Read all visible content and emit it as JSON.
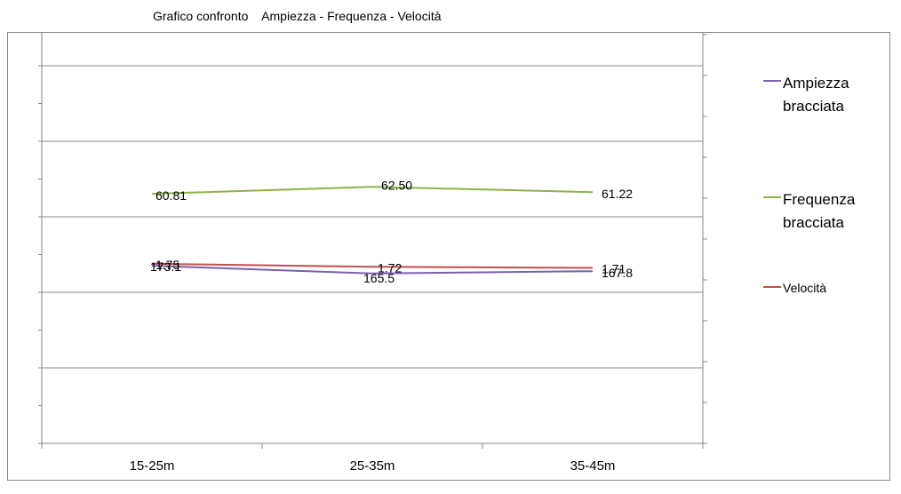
{
  "chart_data": {
    "type": "line",
    "title": "Grafico confronto    Ampiezza - Frequenza - Velocità",
    "categories": [
      "15-25m",
      "25-35m",
      "35-45m"
    ],
    "grid": true,
    "legend_position": "right",
    "series": [
      {
        "name": "Ampiezza bracciata",
        "color": "#7a5fae",
        "values": [
          173.1,
          165.5,
          167.8
        ],
        "labels": [
          "173.1",
          "165.5",
          "167.8"
        ],
        "axis": "right",
        "axis_range": [
          0,
          400
        ]
      },
      {
        "name": "Frequenza bracciata",
        "color": "#8cb348",
        "values": [
          60.81,
          62.5,
          61.22
        ],
        "labels": [
          "60.81",
          "62.50",
          "61.22"
        ],
        "axis": "left",
        "axis_range": [
          0,
          100
        ]
      },
      {
        "name": "Velocità",
        "color": "#c0504d",
        "values": [
          1.75,
          1.72,
          1.71
        ],
        "labels": [
          "1.75",
          "1.72",
          "1.71"
        ],
        "axis": "secondary",
        "axis_range": [
          0,
          4
        ]
      }
    ]
  }
}
